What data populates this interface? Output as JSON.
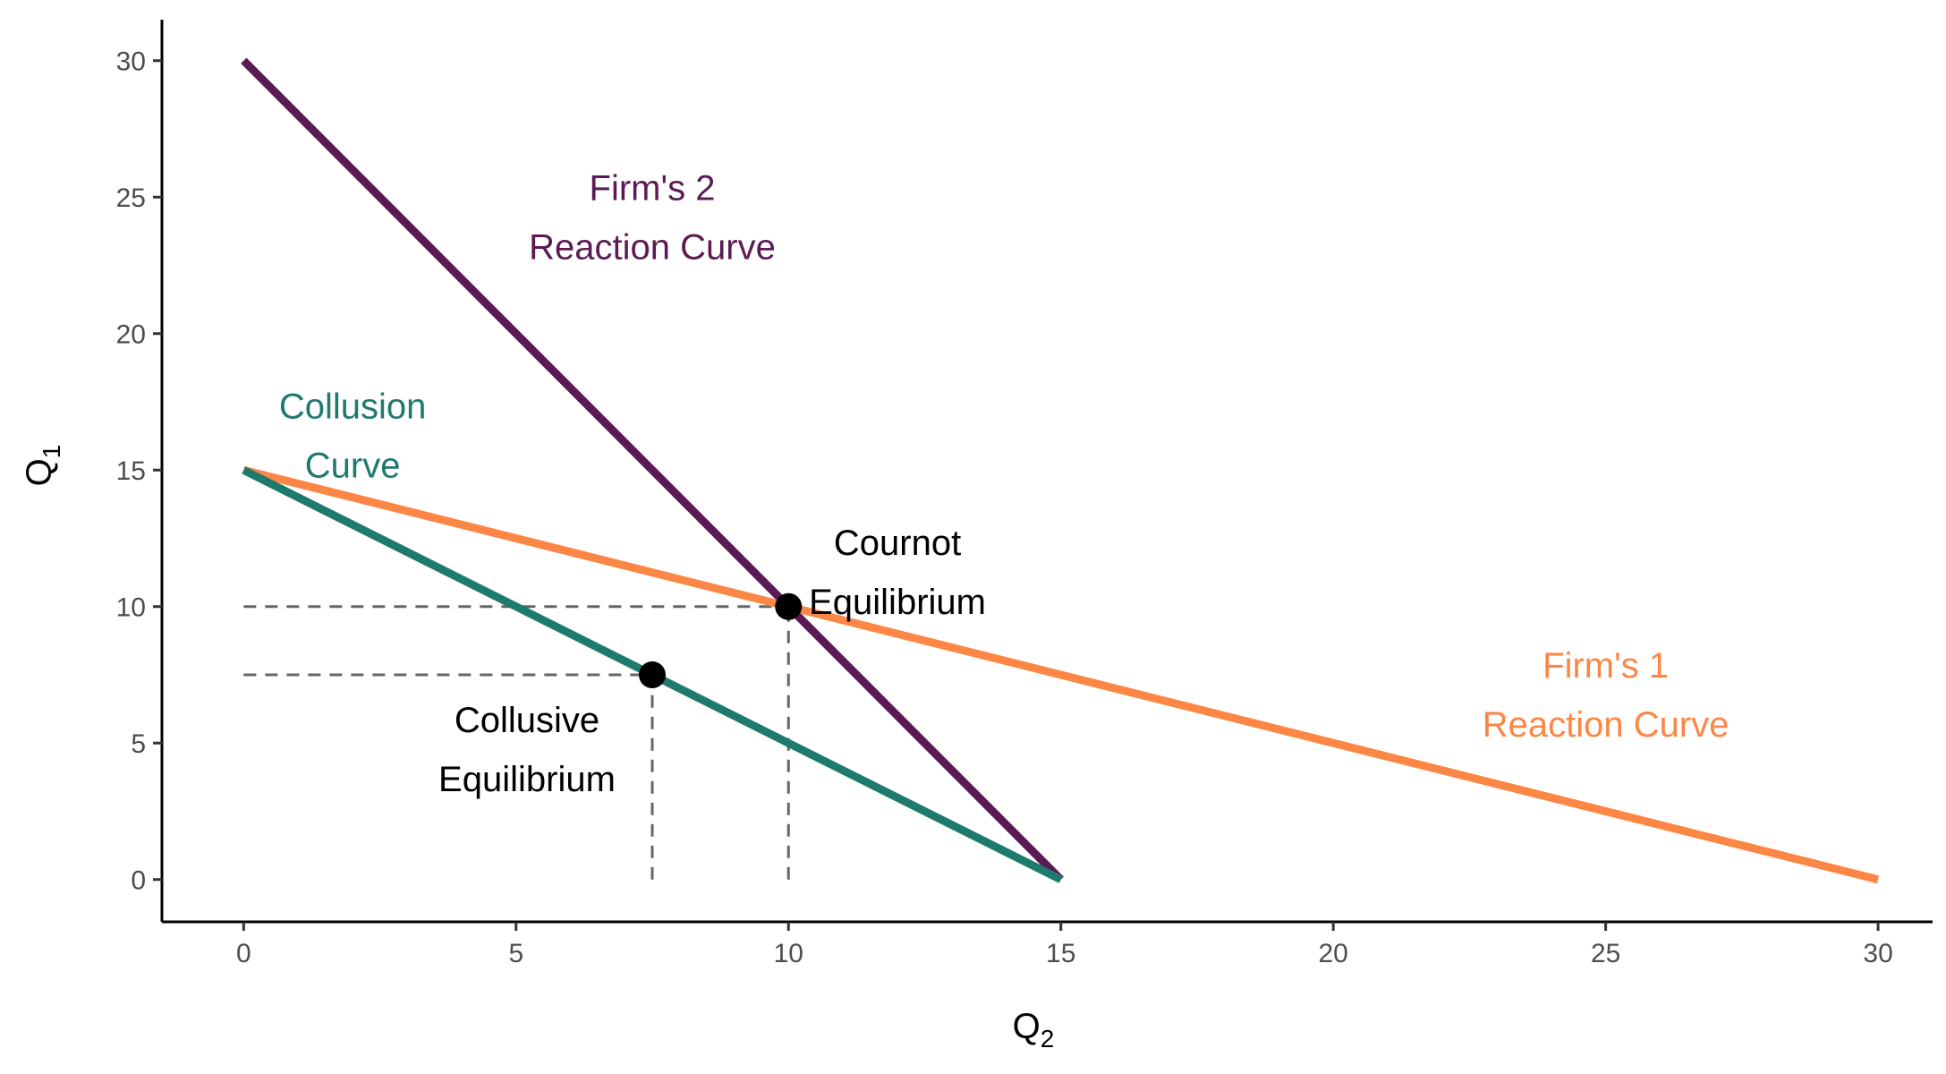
{
  "chart_data": {
    "type": "line",
    "title": "",
    "xlabel": "Q",
    "xlabel_sub": "2",
    "ylabel": "Q",
    "ylabel_sub": "1",
    "xlim": [
      -1.5,
      31.0
    ],
    "ylim": [
      -1.55,
      31.5
    ],
    "xticks": [
      0,
      5,
      10,
      15,
      20,
      25,
      30
    ],
    "yticks": [
      0,
      5,
      10,
      15,
      20,
      25,
      30
    ],
    "grid": false,
    "legend": "none",
    "series": [
      {
        "id": "firm2",
        "color": "#5c1a55",
        "points": [
          [
            0,
            30
          ],
          [
            15,
            0
          ]
        ]
      },
      {
        "id": "firm1",
        "color": "#fb8645",
        "points": [
          [
            0,
            15
          ],
          [
            30,
            0
          ]
        ]
      },
      {
        "id": "collusion",
        "color": "#1f7a6e",
        "points": [
          [
            0,
            15
          ],
          [
            15,
            0
          ]
        ]
      }
    ],
    "guides": [
      {
        "id": "cournot-h",
        "points": [
          [
            0,
            10
          ],
          [
            10,
            10
          ]
        ]
      },
      {
        "id": "cournot-v",
        "points": [
          [
            10,
            0
          ],
          [
            10,
            10
          ]
        ]
      },
      {
        "id": "collusive-h",
        "points": [
          [
            0,
            7.5
          ],
          [
            7.5,
            7.5
          ]
        ]
      },
      {
        "id": "collusive-v",
        "points": [
          [
            7.5,
            0
          ],
          [
            7.5,
            7.5
          ]
        ]
      }
    ],
    "points": [
      {
        "id": "cournot-point",
        "x": 10,
        "y": 10
      },
      {
        "id": "collusive-point",
        "x": 7.5,
        "y": 7.5
      }
    ],
    "annotations": [
      {
        "id": "firm2-label",
        "lines": [
          "Firm's 2",
          "Reaction Curve"
        ],
        "x": 7.5,
        "y": 24.9,
        "color": "#5c1a55"
      },
      {
        "id": "collusion-label",
        "lines": [
          "Collusion",
          "Curve"
        ],
        "x": 2.0,
        "y": 16.9,
        "color": "#1f7a6e"
      },
      {
        "id": "cournot-label",
        "lines": [
          "Cournot",
          "Equilibrium"
        ],
        "x": 12.0,
        "y": 11.9,
        "color": "#000000"
      },
      {
        "id": "firm1-label",
        "lines": [
          "Firm's 1",
          "Reaction Curve"
        ],
        "x": 25.0,
        "y": 7.4,
        "color": "#fb8645"
      },
      {
        "id": "collusive-label",
        "lines": [
          "Collusive",
          "Equilibrium"
        ],
        "x": 5.2,
        "y": 5.4,
        "color": "#000000"
      }
    ]
  }
}
